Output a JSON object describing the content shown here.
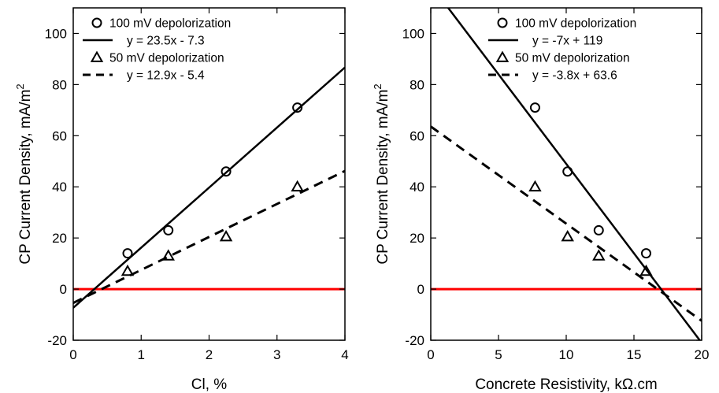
{
  "colors": {
    "zero_line": "#ff0000",
    "ink": "#000000",
    "background": "#ffffff"
  },
  "chart_data": [
    {
      "type": "scatter",
      "title": "",
      "xlabel": "Cl, %",
      "ylabel": "CP Current Density, mA/m",
      "ylabel_superscript": "2",
      "xlim": [
        0,
        4
      ],
      "ylim": [
        -20,
        110
      ],
      "xticks": [
        0,
        1,
        2,
        3,
        4
      ],
      "yticks": [
        -20,
        0,
        20,
        40,
        60,
        80,
        100
      ],
      "grid": false,
      "legend_position": "top-left",
      "reference_line": {
        "y": 0,
        "color": "#ff0000"
      },
      "series": [
        {
          "name": "100 mV depolorization",
          "marker": "circle",
          "x": [
            0.8,
            1.4,
            2.25,
            3.3
          ],
          "y": [
            14,
            23,
            46,
            71
          ]
        },
        {
          "name": "y = 23.5x - 7.3",
          "style": "solid",
          "fit": {
            "slope": 23.5,
            "intercept": -7.3
          }
        },
        {
          "name": "50 mV depolorization",
          "marker": "triangle",
          "x": [
            0.8,
            1.4,
            2.25,
            3.3
          ],
          "y": [
            7,
            13,
            20.5,
            40
          ]
        },
        {
          "name": "y = 12.9x - 5.4",
          "style": "dashed",
          "fit": {
            "slope": 12.9,
            "intercept": -5.4
          }
        }
      ]
    },
    {
      "type": "scatter",
      "title": "",
      "xlabel": "Concrete Resistivity, kΩ.cm",
      "ylabel": "CP Current Density, mA/m",
      "ylabel_superscript": "2",
      "xlim": [
        0,
        20
      ],
      "ylim": [
        -20,
        110
      ],
      "xticks": [
        0,
        5,
        10,
        15,
        20
      ],
      "yticks": [
        -20,
        0,
        20,
        40,
        60,
        80,
        100
      ],
      "grid": false,
      "legend_position": "top-right",
      "reference_line": {
        "y": 0,
        "color": "#ff0000"
      },
      "series": [
        {
          "name": "100 mV depolorization",
          "marker": "circle",
          "x": [
            7.7,
            10.1,
            12.4,
            15.9
          ],
          "y": [
            71,
            46,
            23,
            14
          ]
        },
        {
          "name": "y = -7x + 119",
          "style": "solid",
          "fit": {
            "slope": -7,
            "intercept": 119
          }
        },
        {
          "name": "50 mV depolorization",
          "marker": "triangle",
          "x": [
            7.7,
            10.1,
            12.4,
            15.9
          ],
          "y": [
            40,
            20.5,
            13,
            7
          ]
        },
        {
          "name": "y = -3.8x + 63.6",
          "style": "dashed",
          "fit": {
            "slope": -3.8,
            "intercept": 63.6
          }
        }
      ]
    }
  ]
}
